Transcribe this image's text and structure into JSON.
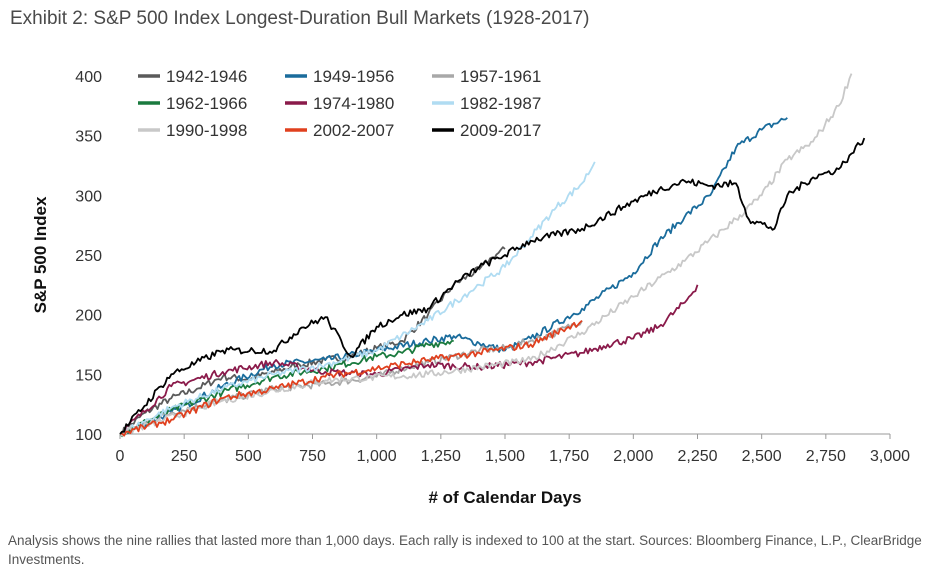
{
  "title": "Exhibit 2: S&P 500 Index Longest-Duration Bull Markets (1928-2017)",
  "footnote": "Analysis shows the nine rallies that lasted more than 1,000 days. Each rally is indexed to 100 at the start. Sources: Bloomberg Finance, L.P., ClearBridge Investments.",
  "chart_data": {
    "type": "line",
    "title": "Exhibit 2: S&P 500 Index Longest-Duration Bull Markets (1928-2017)",
    "xlabel": "# of Calendar Days",
    "ylabel": "S&P 500 Index",
    "xlim": [
      0,
      3000
    ],
    "ylim": [
      100,
      400
    ],
    "x_ticks": [
      0,
      250,
      500,
      750,
      1000,
      1250,
      1500,
      1750,
      2000,
      2250,
      2500,
      2750,
      3000
    ],
    "x_tick_labels": [
      "0",
      "250",
      "500",
      "750",
      "1,000",
      "1,250",
      "1,500",
      "1,750",
      "2,000",
      "2,250",
      "2,500",
      "2,750",
      "3,000"
    ],
    "y_ticks": [
      100,
      150,
      200,
      250,
      300,
      350,
      400
    ],
    "y_tick_labels": [
      "100",
      "150",
      "200",
      "250",
      "300",
      "350",
      "400"
    ],
    "legend_position": "top-left",
    "series": [
      {
        "name": "1942-1946",
        "color": "#5a5a5a",
        "x": [
          0,
          100,
          200,
          300,
          400,
          500,
          600,
          700,
          800,
          900,
          1000,
          1100,
          1200,
          1300,
          1400,
          1450,
          1500
        ],
        "y": [
          100,
          118,
          130,
          138,
          148,
          146,
          152,
          158,
          162,
          165,
          172,
          178,
          200,
          225,
          238,
          248,
          255
        ]
      },
      {
        "name": "1949-1956",
        "color": "#1a6c9c",
        "x": [
          0,
          200,
          400,
          600,
          800,
          1000,
          1200,
          1300,
          1400,
          1500,
          1600,
          1800,
          2000,
          2100,
          2200,
          2300,
          2400,
          2500,
          2600
        ],
        "y": [
          100,
          118,
          140,
          158,
          162,
          170,
          178,
          182,
          176,
          170,
          180,
          205,
          235,
          262,
          282,
          300,
          340,
          355,
          365
        ]
      },
      {
        "name": "1957-1961",
        "color": "#a8a8a8",
        "x": [
          0,
          200,
          400,
          600,
          800,
          1000,
          1100,
          1200,
          1300,
          1400,
          1500,
          1600,
          1700,
          1800
        ],
        "y": [
          100,
          118,
          128,
          138,
          142,
          148,
          155,
          160,
          165,
          170,
          172,
          178,
          185,
          195
        ]
      },
      {
        "name": "1962-1966",
        "color": "#1a7a3e",
        "x": [
          0,
          200,
          400,
          600,
          800,
          1000,
          1100,
          1200,
          1300
        ],
        "y": [
          100,
          120,
          135,
          148,
          155,
          165,
          168,
          175,
          178
        ]
      },
      {
        "name": "1974-1980",
        "color": "#8a1a4a",
        "x": [
          0,
          200,
          400,
          600,
          800,
          1000,
          1200,
          1400,
          1600,
          1800,
          1900,
          2000,
          2100,
          2200,
          2250
        ],
        "y": [
          100,
          140,
          152,
          160,
          152,
          150,
          158,
          156,
          160,
          168,
          175,
          180,
          190,
          210,
          225
        ]
      },
      {
        "name": "1982-1987",
        "color": "#b0dcf2",
        "x": [
          0,
          200,
          400,
          600,
          800,
          1000,
          1200,
          1400,
          1500,
          1600,
          1700,
          1800,
          1850
        ],
        "y": [
          100,
          122,
          138,
          150,
          158,
          170,
          195,
          225,
          240,
          265,
          290,
          310,
          328
        ]
      },
      {
        "name": "1990-1998",
        "color": "#c8c8c8",
        "x": [
          0,
          400,
          800,
          1200,
          1600,
          1800,
          2000,
          2200,
          2400,
          2500,
          2600,
          2700,
          2800,
          2850
        ],
        "y": [
          100,
          128,
          145,
          150,
          162,
          185,
          215,
          245,
          280,
          300,
          330,
          345,
          375,
          402
        ]
      },
      {
        "name": "2002-2007",
        "color": "#e0401e",
        "x": [
          0,
          200,
          400,
          600,
          800,
          1000,
          1200,
          1400,
          1600,
          1700,
          1800
        ],
        "y": [
          100,
          112,
          130,
          138,
          148,
          155,
          162,
          168,
          175,
          185,
          195
        ]
      },
      {
        "name": "2009-2017",
        "color": "#000000",
        "x": [
          0,
          200,
          400,
          600,
          700,
          800,
          900,
          1000,
          1100,
          1200,
          1300,
          1400,
          1500,
          1600,
          1800,
          2000,
          2100,
          2200,
          2300,
          2400,
          2450,
          2550,
          2600,
          2700,
          2800,
          2850,
          2900
        ],
        "y": [
          100,
          150,
          170,
          170,
          188,
          198,
          165,
          190,
          200,
          205,
          225,
          240,
          250,
          262,
          272,
          295,
          305,
          312,
          308,
          310,
          280,
          272,
          300,
          315,
          322,
          335,
          348
        ]
      }
    ]
  }
}
